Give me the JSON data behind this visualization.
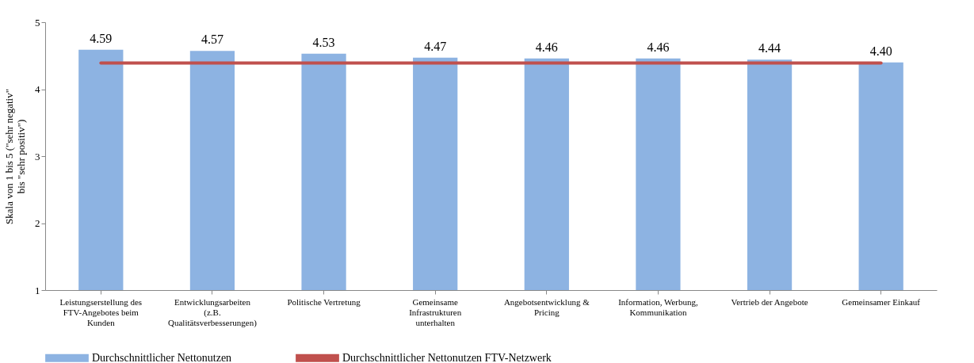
{
  "chart_data": {
    "type": "bar",
    "ylabel": "Skala von 1 bis 5 (\"sehr negativ\" bis \"sehr positiv\")",
    "categories": [
      "Leistungserstellung des FTV-Angebotes beim Kunden",
      "Entwicklungsarbeiten (z.B. Qualitätsverbesserungen)",
      "Politische Vertretung",
      "Gemeinsame Infrastrukturen unterhalten",
      "Angebotsentwicklung & Pricing",
      "Information, Werbung, Kommunikation",
      "Vertrieb der Angebote",
      "Gemeinsamer Einkauf"
    ],
    "series": [
      {
        "name": "Durchschnittlicher Nettonutzen",
        "color": "#8db3e2",
        "values": [
          4.59,
          4.57,
          4.53,
          4.47,
          4.46,
          4.46,
          4.44,
          4.4
        ],
        "value_labels": [
          "4.59",
          "4.57",
          "4.53",
          "4.47",
          "4.46",
          "4.46",
          "4.44",
          "4.40"
        ]
      },
      {
        "name": "Durchschnittlicher Nettonutzen FTV-Netzwerk",
        "color": "#c0504d",
        "type": "line",
        "values": [
          4.39,
          4.39,
          4.39,
          4.39,
          4.39,
          4.39,
          4.39,
          4.39
        ]
      }
    ],
    "ylim": [
      1,
      5
    ],
    "yticks": [
      1,
      2,
      3,
      4,
      5
    ],
    "grid": false,
    "legend": "bottom"
  }
}
